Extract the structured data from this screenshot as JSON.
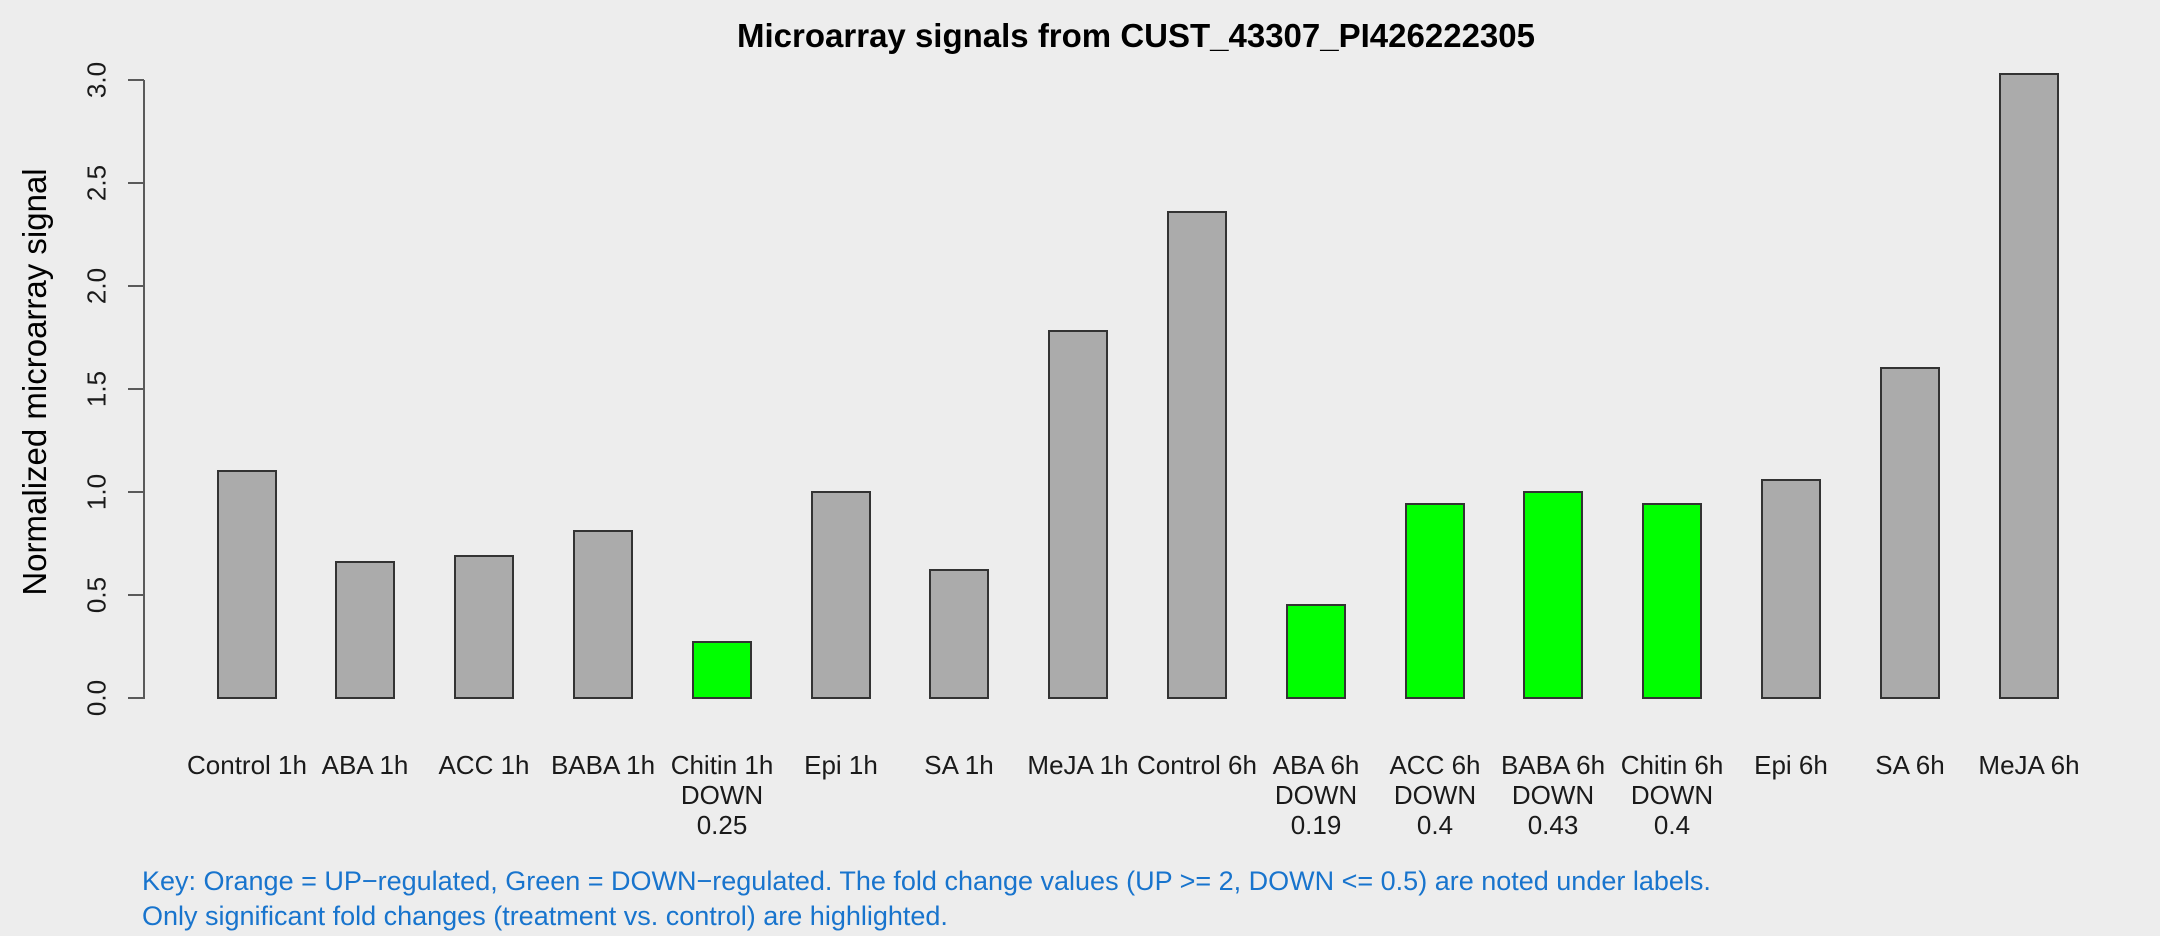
{
  "title": "Microarray signals from CUST_43307_PI426222305",
  "y_axis": {
    "label": "Normalized microarray signal",
    "tick_labels": [
      "0.0",
      "0.5",
      "1.0",
      "1.5",
      "2.0",
      "2.5",
      "3.0"
    ]
  },
  "down_label": "DOWN",
  "key": {
    "line1": "Key: Orange = UP−regulated, Green = DOWN−regulated. The fold change values (UP >= 2, DOWN <= 0.5) are noted under labels.",
    "line2": "Only significant fold changes (treatment vs. control) are highlighted."
  },
  "colors": {
    "background": "#EDEDED",
    "bar_default": "#ABABAB",
    "bar_down": "#00FF00",
    "bar_up": "#FFA500",
    "bar_border": "#333333",
    "axis": "#5A5A5A",
    "key_text": "#1874CD"
  },
  "chart_data": {
    "type": "bar",
    "title": "Microarray signals from CUST_43307_PI426222305",
    "xlabel": "",
    "ylabel": "Normalized microarray signal",
    "ylim": [
      0,
      3.0
    ],
    "ytick_step": 0.5,
    "grid": false,
    "legend_position": "none",
    "categories": [
      "Control 1h",
      "ABA 1h",
      "ACC 1h",
      "BABA 1h",
      "Chitin 1h",
      "Epi 1h",
      "SA 1h",
      "MeJA 1h",
      "Control 6h",
      "ABA 6h",
      "ACC 6h",
      "BABA 6h",
      "Chitin 6h",
      "Epi 6h",
      "SA 6h",
      "MeJA 6h"
    ],
    "values": [
      1.11,
      0.67,
      0.7,
      0.82,
      0.28,
      1.01,
      0.63,
      1.79,
      2.37,
      0.46,
      0.95,
      1.01,
      0.95,
      1.07,
      1.61,
      3.04
    ],
    "regulation": [
      null,
      null,
      null,
      null,
      "DOWN",
      null,
      null,
      null,
      null,
      "DOWN",
      "DOWN",
      "DOWN",
      "DOWN",
      null,
      null,
      null
    ],
    "fold_changes": [
      null,
      null,
      null,
      null,
      "0.25",
      null,
      null,
      null,
      null,
      "0.19",
      "0.4",
      "0.43",
      "0.4",
      null,
      null,
      null
    ]
  }
}
